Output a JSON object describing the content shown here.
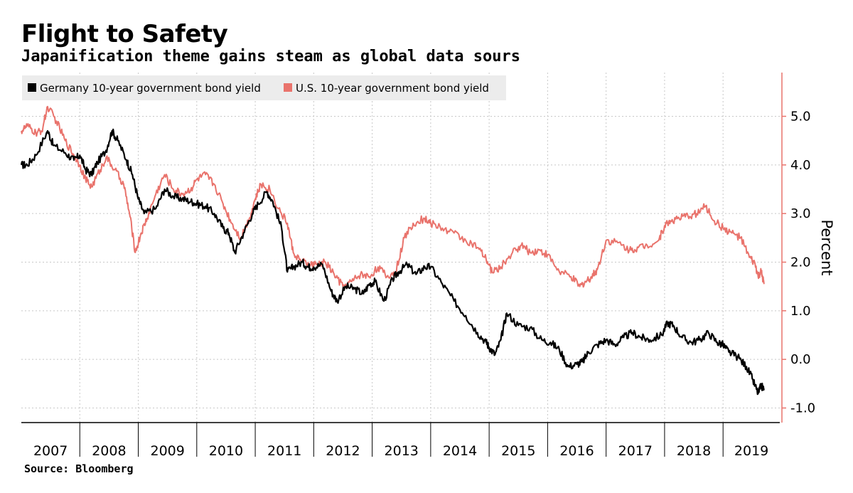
{
  "title": "Flight to Safety",
  "subtitle": "Japanification theme gains steam as global data sours",
  "source": "Source: Bloomberg",
  "chart_data": {
    "type": "line",
    "title": "Flight to Safety",
    "subtitle": "Japanification theme gains steam as global data sours",
    "xlabel": "",
    "ylabel": "Percent",
    "ylim": [
      -1.3,
      5.9
    ],
    "yticks": [
      5.0,
      4.0,
      3.0,
      2.0,
      1.0,
      0.0,
      -1.0
    ],
    "ytick_labels": [
      "5.0",
      "4.0",
      "3.0",
      "2.0",
      "1.0",
      "0.0",
      "-1.0"
    ],
    "xlim": [
      2007.0,
      2019.97
    ],
    "x_tick_labels": [
      "2007",
      "2008",
      "2009",
      "2010",
      "2011",
      "2012",
      "2013",
      "2014",
      "2015",
      "2016",
      "2017",
      "2018",
      "2019"
    ],
    "grid": true,
    "legend_position": "top-left",
    "series": [
      {
        "name": "Germany 10-year government bond yield",
        "color": "#000000",
        "x": [
          2007.0,
          2007.1,
          2007.25,
          2007.45,
          2007.55,
          2007.75,
          2007.9,
          2008.0,
          2008.1,
          2008.2,
          2008.3,
          2008.45,
          2008.55,
          2008.65,
          2008.8,
          2008.9,
          2009.0,
          2009.1,
          2009.3,
          2009.45,
          2009.6,
          2009.75,
          2009.9,
          2010.0,
          2010.15,
          2010.3,
          2010.45,
          2010.55,
          2010.65,
          2010.8,
          2010.95,
          2011.05,
          2011.2,
          2011.3,
          2011.45,
          2011.55,
          2011.65,
          2011.8,
          2011.9,
          2012.0,
          2012.15,
          2012.3,
          2012.4,
          2012.55,
          2012.7,
          2012.85,
          2012.95,
          2013.05,
          2013.2,
          2013.35,
          2013.45,
          2013.6,
          2013.75,
          2013.9,
          2014.0,
          2014.2,
          2014.4,
          2014.6,
          2014.8,
          2014.95,
          2015.0,
          2015.1,
          2015.2,
          2015.3,
          2015.5,
          2015.7,
          2015.9,
          2016.05,
          2016.2,
          2016.35,
          2016.5,
          2016.6,
          2016.7,
          2016.85,
          2017.0,
          2017.15,
          2017.3,
          2017.45,
          2017.6,
          2017.75,
          2017.95,
          2018.05,
          2018.15,
          2018.3,
          2018.45,
          2018.6,
          2018.75,
          2018.9,
          2019.0,
          2019.1,
          2019.25,
          2019.4,
          2019.5,
          2019.6,
          2019.65,
          2019.7
        ],
        "values": [
          4.0,
          4.0,
          4.2,
          4.7,
          4.4,
          4.25,
          4.1,
          4.2,
          3.9,
          3.8,
          4.05,
          4.3,
          4.7,
          4.5,
          4.1,
          3.8,
          3.3,
          3.0,
          3.1,
          3.5,
          3.35,
          3.3,
          3.25,
          3.2,
          3.15,
          3.0,
          2.7,
          2.6,
          2.2,
          2.6,
          3.0,
          3.2,
          3.45,
          3.25,
          2.7,
          1.8,
          1.9,
          2.0,
          1.9,
          1.9,
          1.95,
          1.4,
          1.2,
          1.5,
          1.45,
          1.35,
          1.55,
          1.6,
          1.2,
          1.65,
          1.8,
          1.95,
          1.75,
          1.9,
          1.9,
          1.55,
          1.2,
          0.9,
          0.55,
          0.35,
          0.25,
          0.1,
          0.4,
          0.95,
          0.7,
          0.65,
          0.4,
          0.35,
          0.2,
          -0.15,
          -0.1,
          -0.05,
          0.15,
          0.3,
          0.4,
          0.3,
          0.45,
          0.55,
          0.45,
          0.4,
          0.5,
          0.75,
          0.7,
          0.45,
          0.35,
          0.4,
          0.55,
          0.35,
          0.3,
          0.15,
          0.05,
          -0.15,
          -0.4,
          -0.7,
          -0.55,
          -0.6
        ]
      },
      {
        "name": "U.S. 10-year government bond yield",
        "color": "#e9736c",
        "x": [
          2007.0,
          2007.1,
          2007.25,
          2007.35,
          2007.45,
          2007.6,
          2007.75,
          2007.9,
          2008.0,
          2008.1,
          2008.2,
          2008.35,
          2008.45,
          2008.6,
          2008.75,
          2008.85,
          2008.95,
          2009.05,
          2009.15,
          2009.3,
          2009.45,
          2009.6,
          2009.75,
          2009.9,
          2010.0,
          2010.15,
          2010.3,
          2010.45,
          2010.6,
          2010.75,
          2010.9,
          2011.0,
          2011.1,
          2011.25,
          2011.4,
          2011.55,
          2011.65,
          2011.8,
          2011.95,
          2012.05,
          2012.2,
          2012.35,
          2012.5,
          2012.65,
          2012.8,
          2012.95,
          2013.1,
          2013.25,
          2013.4,
          2013.55,
          2013.7,
          2013.9,
          2014.0,
          2014.2,
          2014.4,
          2014.6,
          2014.8,
          2014.95,
          2015.05,
          2015.2,
          2015.4,
          2015.55,
          2015.7,
          2015.85,
          2016.0,
          2016.2,
          2016.4,
          2016.55,
          2016.65,
          2016.75,
          2016.85,
          2017.0,
          2017.2,
          2017.4,
          2017.55,
          2017.7,
          2017.9,
          2018.0,
          2018.1,
          2018.25,
          2018.4,
          2018.55,
          2018.7,
          2018.85,
          2019.0,
          2019.15,
          2019.3,
          2019.45,
          2019.55,
          2019.6,
          2019.65,
          2019.7
        ],
        "values": [
          4.7,
          4.8,
          4.65,
          4.7,
          5.2,
          4.9,
          4.5,
          4.2,
          4.0,
          3.7,
          3.55,
          3.9,
          4.15,
          3.9,
          3.6,
          3.0,
          2.2,
          2.6,
          2.9,
          3.4,
          3.8,
          3.5,
          3.4,
          3.5,
          3.7,
          3.8,
          3.6,
          3.2,
          2.8,
          2.5,
          2.9,
          3.3,
          3.6,
          3.5,
          3.1,
          2.8,
          2.2,
          2.0,
          1.95,
          1.95,
          2.0,
          1.75,
          1.5,
          1.6,
          1.75,
          1.7,
          1.9,
          1.7,
          1.8,
          2.5,
          2.8,
          2.9,
          2.8,
          2.7,
          2.6,
          2.45,
          2.3,
          2.05,
          1.8,
          1.9,
          2.2,
          2.35,
          2.2,
          2.25,
          2.15,
          1.8,
          1.7,
          1.5,
          1.6,
          1.7,
          1.85,
          2.45,
          2.4,
          2.25,
          2.3,
          2.35,
          2.45,
          2.75,
          2.85,
          2.9,
          2.95,
          3.0,
          3.15,
          2.85,
          2.7,
          2.6,
          2.5,
          2.1,
          1.95,
          1.7,
          1.8,
          1.55
        ]
      }
    ]
  }
}
